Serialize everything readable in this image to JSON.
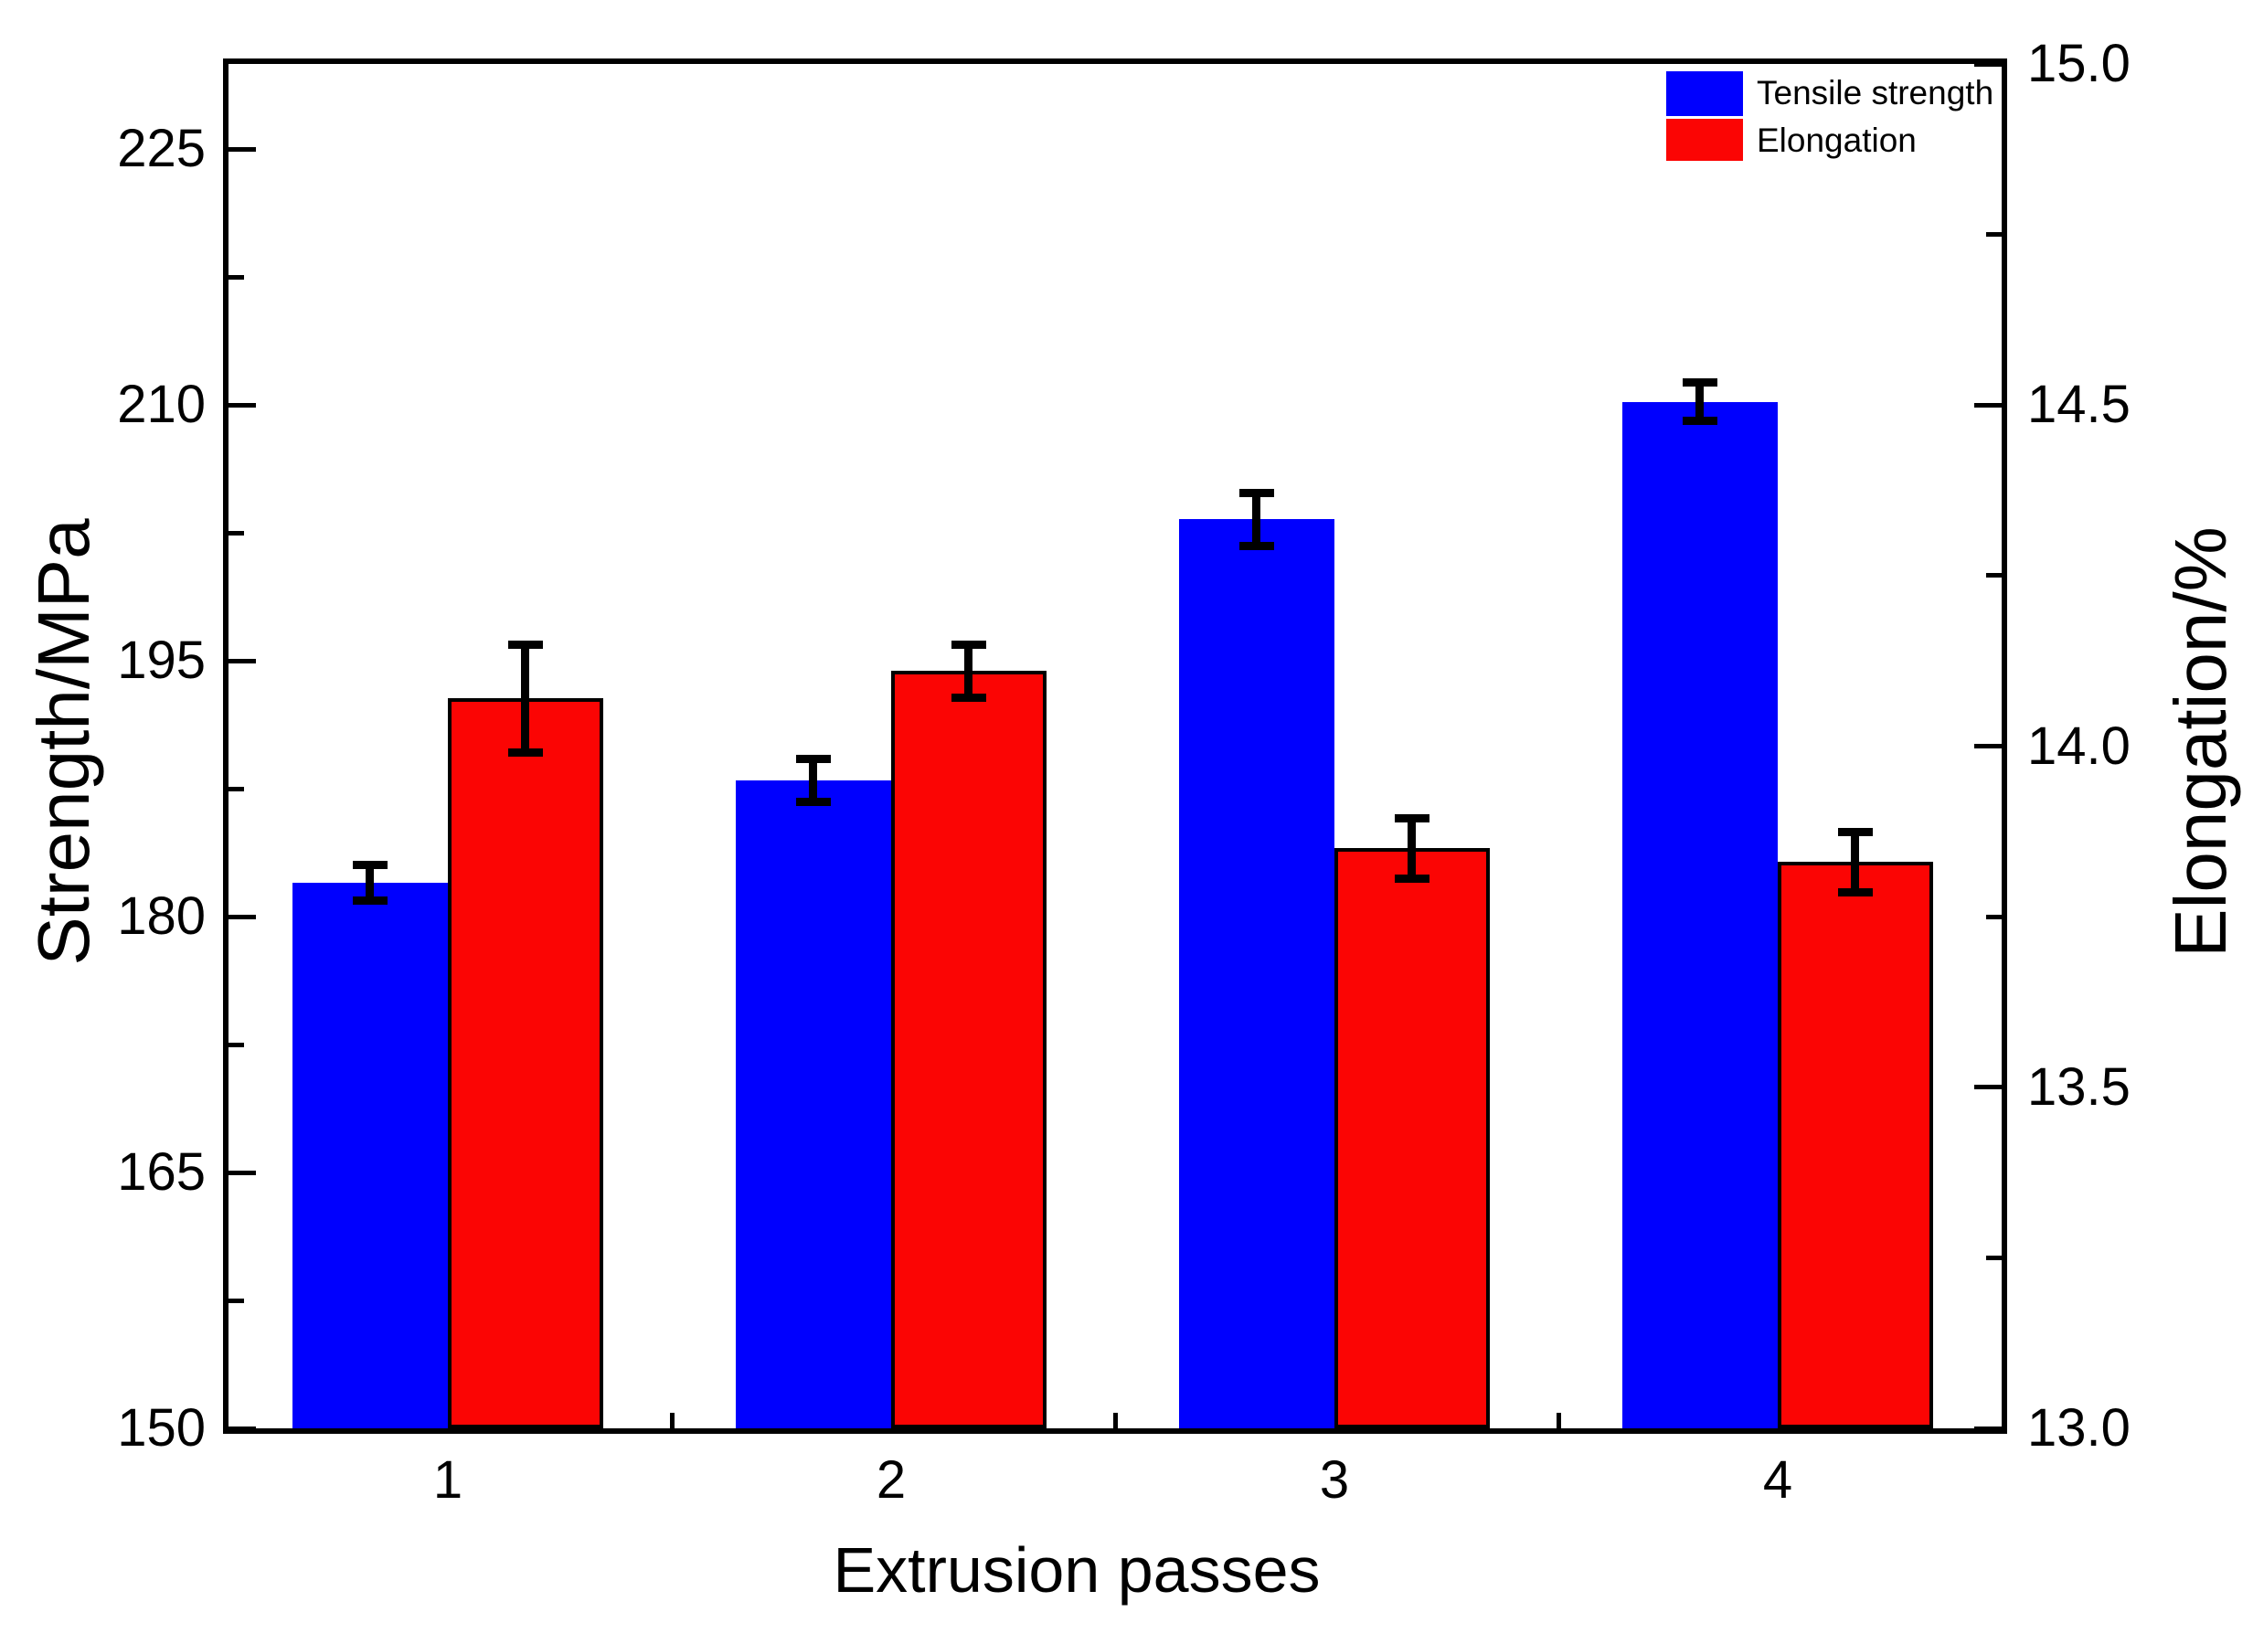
{
  "chart_data": {
    "type": "bar",
    "title": "",
    "xlabel": "Extrusion passes",
    "categories": [
      "1",
      "2",
      "3",
      "4"
    ],
    "axes": {
      "left": {
        "label": "Strength/MPa",
        "min": 150,
        "max": 230,
        "major_ticks": [
          150,
          165,
          180,
          195,
          210,
          225
        ],
        "major_tick_labels": [
          "150",
          "165",
          "180",
          "195",
          "210",
          "225"
        ],
        "minor_ticks": [
          157.5,
          172.5,
          187.5,
          202.5,
          217.5
        ]
      },
      "right": {
        "label": "Elongation/%",
        "min": 13.0,
        "max": 15.0,
        "major_ticks": [
          13.0,
          13.5,
          14.0,
          14.5,
          15.0
        ],
        "major_tick_labels": [
          "13.0",
          "13.5",
          "14.0",
          "14.5",
          "15.0"
        ],
        "minor_ticks": [
          13.25,
          13.75,
          14.25,
          14.75
        ]
      }
    },
    "series": [
      {
        "name": "Tensile strength",
        "axis": "left",
        "color": "#0000fe",
        "edge_color": "none",
        "values": [
          182.0,
          188.0,
          203.3,
          210.2
        ],
        "errors": [
          1.3,
          1.5,
          1.8,
          1.35
        ]
      },
      {
        "name": "Elongation",
        "axis": "right",
        "color": "#fb0504",
        "edge_color": "#000000",
        "values": [
          14.07,
          14.11,
          13.85,
          13.83
        ],
        "errors": [
          0.085,
          0.045,
          0.05,
          0.05
        ]
      }
    ],
    "legend": {
      "position": "top-right-inside",
      "entries": [
        "Tensile strength",
        "Elongation"
      ]
    },
    "grid": "off",
    "frame": "full-box",
    "error_bar_color": "#000000"
  }
}
